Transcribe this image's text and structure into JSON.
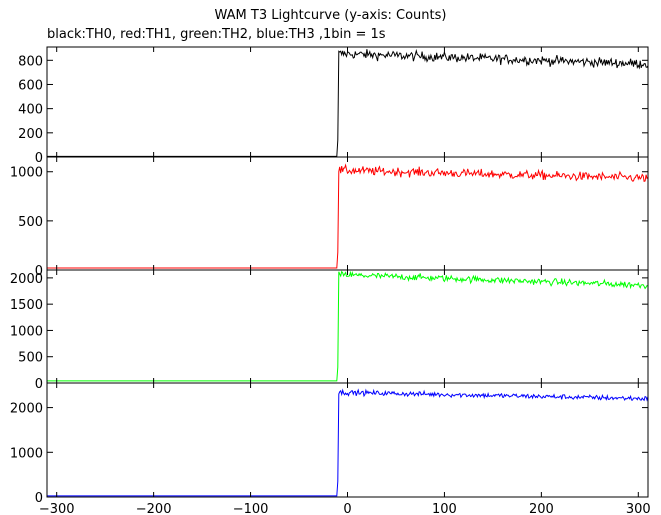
{
  "chart_data": {
    "type": "line",
    "title": "WAM T3 Lightcurve (y-axis: Counts)",
    "subtitle": "black:TH0, red:TH1, green:TH2, blue:TH3 ,1bin = 1s",
    "xlim": [
      -310,
      310
    ],
    "x_ticks": [
      -300,
      -200,
      -100,
      0,
      100,
      200,
      300
    ],
    "x_tick_labels": [
      "−300",
      "−200",
      "−100",
      "0",
      "100",
      "200",
      "300"
    ],
    "x_step_seconds": 1,
    "trigger_x": -9,
    "grid": false,
    "panels": [
      {
        "series": {
          "name": "TH0",
          "color": "#000000"
        },
        "ylim": [
          0,
          910
        ],
        "y_ticks": [
          0,
          200,
          400,
          600,
          800
        ],
        "y_tick_labels": [
          "0",
          "200",
          "400",
          "600",
          "800"
        ],
        "baseline": 5,
        "onset_spike": 140,
        "peak": 855,
        "end_level": 770,
        "noise": 28
      },
      {
        "series": {
          "name": "TH1",
          "color": "#ff0000"
        },
        "ylim": [
          0,
          1150
        ],
        "y_ticks": [
          0,
          500,
          1000
        ],
        "y_tick_labels": [
          "0",
          "500",
          "1000"
        ],
        "baseline": 20,
        "onset_spike": 180,
        "peak": 1015,
        "end_level": 935,
        "noise": 32
      },
      {
        "series": {
          "name": "TH2",
          "color": "#00ff00"
        },
        "ylim": [
          0,
          2150
        ],
        "y_ticks": [
          0,
          500,
          1000,
          1500,
          2000
        ],
        "y_tick_labels": [
          "0",
          "500",
          "1000",
          "1500",
          "2000"
        ],
        "baseline": 40,
        "onset_spike": 300,
        "peak": 2060,
        "end_level": 1860,
        "noise": 45
      },
      {
        "series": {
          "name": "TH3",
          "color": "#0000ff"
        },
        "ylim": [
          0,
          2550
        ],
        "y_ticks": [
          0,
          1000,
          2000
        ],
        "y_tick_labels": [
          "0",
          "1000",
          "2000"
        ],
        "baseline": 25,
        "onset_spike": 350,
        "peak": 2340,
        "end_level": 2200,
        "noise": 40
      }
    ]
  }
}
